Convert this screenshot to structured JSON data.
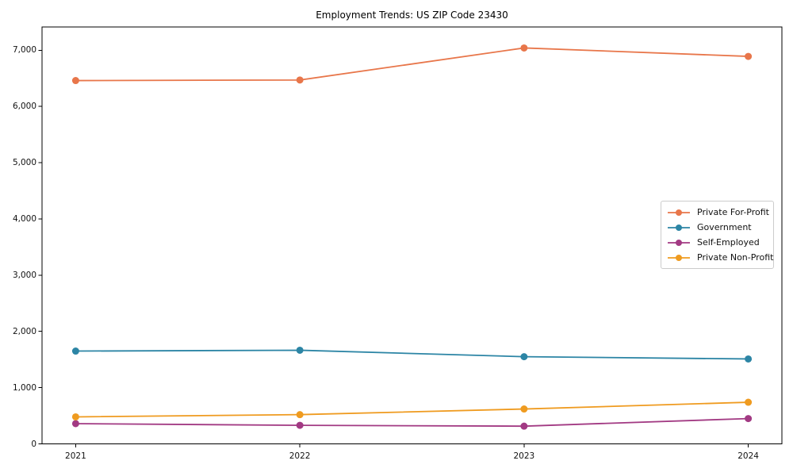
{
  "figure": {
    "title": "Employment Trends: US ZIP Code 23430"
  },
  "chart_data": {
    "type": "line",
    "title": "Employment Trends: US ZIP Code 23430",
    "categories": [
      "2021",
      "2022",
      "2023",
      "2024"
    ],
    "x": [
      2021,
      2022,
      2023,
      2024
    ],
    "series": [
      {
        "name": "Private For-Profit",
        "color": "#e8764a",
        "values": [
          6460,
          6470,
          7040,
          6890
        ]
      },
      {
        "name": "Government",
        "color": "#2c85a5",
        "values": [
          1650,
          1665,
          1550,
          1510
        ]
      },
      {
        "name": "Self-Employed",
        "color": "#a23a83",
        "values": [
          360,
          330,
          315,
          450
        ]
      },
      {
        "name": "Private Non-Profit",
        "color": "#ef9b20",
        "values": [
          480,
          520,
          620,
          740
        ]
      }
    ],
    "xlabel": "",
    "ylabel": "",
    "xlim": [
      2020.85,
      2024.15
    ],
    "ylim": [
      0,
      7413
    ],
    "yticks": {
      "values": [
        0,
        1000,
        2000,
        3000,
        4000,
        5000,
        6000,
        7000
      ],
      "labels": [
        "0",
        "1,000",
        "2,000",
        "3,000",
        "4,000",
        "5,000",
        "6,000",
        "7,000"
      ]
    },
    "grid": false,
    "marker": "circle",
    "legend": {
      "position": "center-right",
      "entries": [
        "Private For-Profit",
        "Government",
        "Self-Employed",
        "Private Non-Profit"
      ]
    },
    "style": {
      "axis_color": "#000000",
      "text_color": "#111111",
      "background": "#ffffff",
      "legend_border": "#cccccc"
    }
  }
}
